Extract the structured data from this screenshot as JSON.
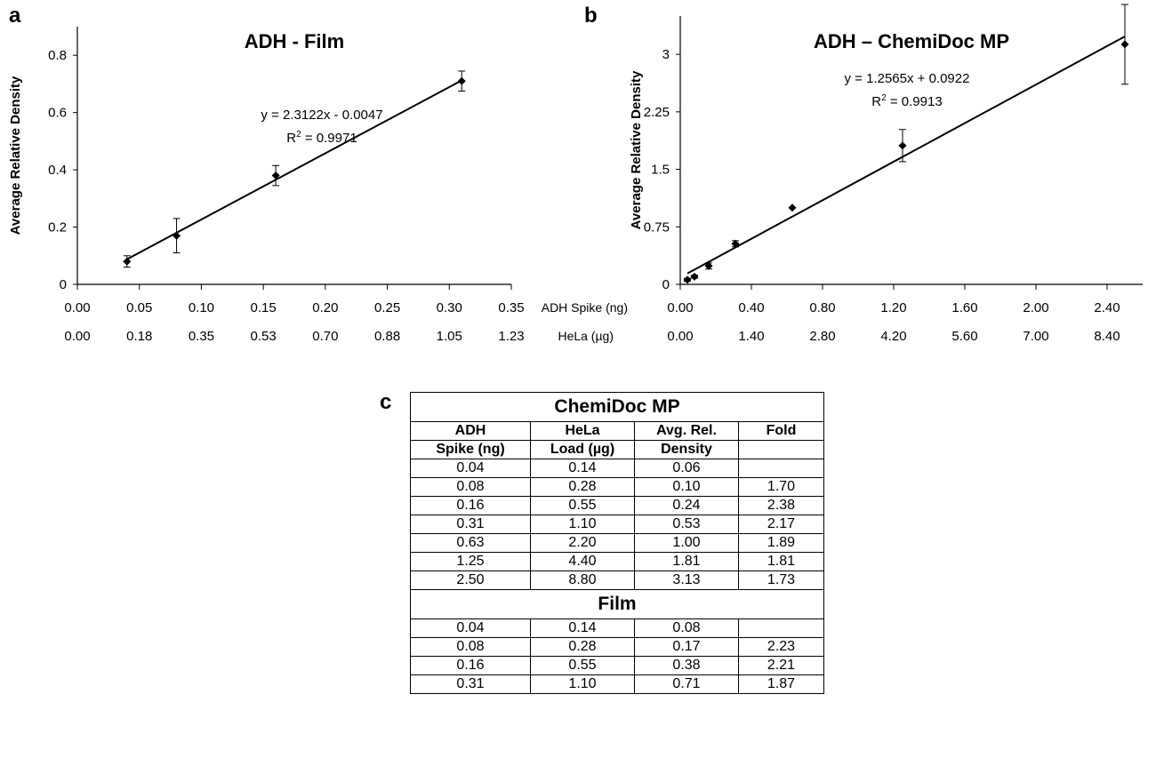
{
  "panels": {
    "a": "a",
    "b": "b",
    "c": "c"
  },
  "chart_data": [
    {
      "type": "scatter",
      "title": "ADH - Film",
      "ylabel": "Average Relative Density",
      "xlabel": "",
      "xlim": [
        0,
        0.35
      ],
      "ylim": [
        0,
        0.9
      ],
      "yticks": [
        "0",
        "0.2",
        "0.4",
        "0.6",
        "0.8"
      ],
      "ytick_values": [
        0,
        0.2,
        0.4,
        0.6,
        0.8
      ],
      "xtick_values": [
        0,
        0.05,
        0.1,
        0.15,
        0.2,
        0.25,
        0.3,
        0.35
      ],
      "xticks": [
        "0.00",
        "0.05",
        "0.10",
        "0.15",
        "0.20",
        "0.25",
        "0.30",
        "0.35"
      ],
      "xticks2": [
        "0.00",
        "0.18",
        "0.35",
        "0.53",
        "0.70",
        "0.88",
        "1.05",
        "1.23"
      ],
      "x": [
        0.04,
        0.08,
        0.16,
        0.31
      ],
      "y": [
        0.08,
        0.17,
        0.38,
        0.71
      ],
      "err": [
        0.02,
        0.06,
        0.035,
        0.035
      ],
      "fit": {
        "slope": 2.3122,
        "intercept": -0.0047,
        "x_range": [
          0.04,
          0.31
        ]
      },
      "equation": "y = 2.3122x - 0.0047",
      "r2_label": "R",
      "r2_sup": "2",
      "r2_value": " = 0.9971",
      "legend": "none",
      "grid": false
    },
    {
      "type": "scatter",
      "title": "ADH – ChemiDoc MP",
      "ylabel": "Average Relative Density",
      "xlabel": "",
      "xlim": [
        0,
        2.6
      ],
      "ylim": [
        0,
        3.5
      ],
      "yticks": [
        "0",
        "0.75",
        "1.5",
        "2.25",
        "3"
      ],
      "ytick_values": [
        0,
        0.75,
        1.5,
        2.25,
        3
      ],
      "xtick_values": [
        0,
        0.4,
        0.8,
        1.2,
        1.6,
        2.0,
        2.4
      ],
      "xticks": [
        "0.00",
        "0.40",
        "0.80",
        "1.20",
        "1.60",
        "2.00",
        "2.40"
      ],
      "xticks2": [
        "0.00",
        "1.40",
        "2.80",
        "4.20",
        "5.60",
        "7.00",
        "8.40"
      ],
      "xrow1_label": "ADH Spike (ng)",
      "xrow2_label": "HeLa (µg)",
      "x": [
        0.04,
        0.08,
        0.16,
        0.31,
        0.63,
        1.25,
        2.5
      ],
      "y": [
        0.06,
        0.1,
        0.24,
        0.53,
        1.0,
        1.81,
        3.13
      ],
      "err": [
        0.02,
        0.02,
        0.04,
        0.04,
        0.0,
        0.21,
        0.52
      ],
      "fit": {
        "slope": 1.2565,
        "intercept": 0.0922,
        "x_range": [
          0.04,
          2.5
        ]
      },
      "equation": "y = 1.2565x + 0.0922",
      "r2_label": "R",
      "r2_sup": "2",
      "r2_value": " = 0.9913",
      "legend": "none",
      "grid": false
    },
    {
      "type": "table",
      "sections": [
        {
          "name": "ChemiDoc MP",
          "rows": [
            [
              "0.04",
              "0.14",
              "0.06",
              ""
            ],
            [
              "0.08",
              "0.28",
              "0.10",
              "1.70"
            ],
            [
              "0.16",
              "0.55",
              "0.24",
              "2.38"
            ],
            [
              "0.31",
              "1.10",
              "0.53",
              "2.17"
            ],
            [
              "0.63",
              "2.20",
              "1.00",
              "1.89"
            ],
            [
              "1.25",
              "4.40",
              "1.81",
              "1.81"
            ],
            [
              "2.50",
              "8.80",
              "3.13",
              "1.73"
            ]
          ]
        },
        {
          "name": "Film",
          "rows": [
            [
              "0.04",
              "0.14",
              "0.08",
              ""
            ],
            [
              "0.08",
              "0.28",
              "0.17",
              "2.23"
            ],
            [
              "0.16",
              "0.55",
              "0.38",
              "2.21"
            ],
            [
              "0.31",
              "1.10",
              "0.71",
              "1.87"
            ]
          ]
        }
      ],
      "headers": {
        "line1": [
          "ADH",
          "HeLa",
          "Avg. Rel.",
          "Fold"
        ],
        "line2": [
          "Spike (ng)",
          "Load (µg)",
          "Density",
          ""
        ]
      }
    }
  ]
}
